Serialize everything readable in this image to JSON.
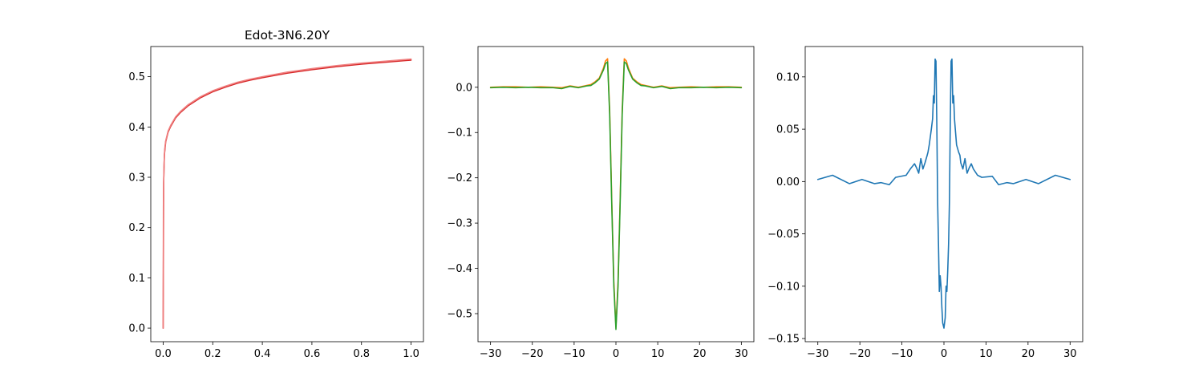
{
  "chart_data": [
    {
      "type": "line",
      "title": "Edot-3N6.20Y",
      "xlabel": "",
      "ylabel": "",
      "xlim": [
        -0.05,
        1.05
      ],
      "ylim": [
        -0.027,
        0.56
      ],
      "xticks": [
        0.0,
        0.2,
        0.4,
        0.6,
        0.8,
        1.0
      ],
      "xtick_labels": [
        "0.0",
        "0.2",
        "0.4",
        "0.6",
        "0.8",
        "1.0"
      ],
      "yticks": [
        0.0,
        0.1,
        0.2,
        0.3,
        0.4,
        0.5
      ],
      "ytick_labels": [
        "0.0",
        "0.1",
        "0.2",
        "0.3",
        "0.4",
        "0.5"
      ],
      "grid": false,
      "series": [
        {
          "color": "#d62728",
          "x": [
            0,
            0.002,
            0.005,
            0.01,
            0.02,
            0.03,
            0.05,
            0.07,
            0.1,
            0.15,
            0.2,
            0.25,
            0.3,
            0.35,
            0.4,
            0.5,
            0.6,
            0.7,
            0.8,
            0.9,
            1.0
          ],
          "y": [
            0,
            0.29,
            0.345,
            0.37,
            0.39,
            0.401,
            0.418,
            0.429,
            0.442,
            0.458,
            0.47,
            0.479,
            0.487,
            0.493,
            0.498,
            0.507,
            0.514,
            0.52,
            0.525,
            0.529,
            0.533
          ]
        },
        {
          "color": "#f08080",
          "x": [
            0,
            0.001,
            0.003,
            0.006,
            0.01,
            0.02,
            0.03,
            0.05,
            0.07,
            0.1,
            0.15,
            0.2,
            0.25,
            0.3,
            0.35,
            0.4,
            0.5,
            0.6,
            0.7,
            0.8,
            0.9,
            1.0
          ],
          "y": [
            0,
            0.24,
            0.32,
            0.355,
            0.372,
            0.392,
            0.403,
            0.42,
            0.431,
            0.444,
            0.46,
            0.472,
            0.481,
            0.489,
            0.495,
            0.5,
            0.509,
            0.516,
            0.522,
            0.527,
            0.531,
            0.535
          ]
        }
      ]
    },
    {
      "type": "line",
      "title": "",
      "xlabel": "",
      "ylabel": "",
      "xlim": [
        -33,
        33
      ],
      "ylim": [
        -0.562,
        0.09
      ],
      "xticks": [
        -30,
        -20,
        -10,
        0,
        10,
        20,
        30
      ],
      "xtick_labels": [
        "−30",
        "−20",
        "−10",
        "0",
        "10",
        "20",
        "30"
      ],
      "yticks": [
        -0.5,
        -0.4,
        -0.3,
        -0.2,
        -0.1,
        0.0
      ],
      "ytick_labels": [
        "−0.5",
        "−0.4",
        "−0.3",
        "−0.2",
        "−0.1",
        "0.0"
      ],
      "grid": false,
      "series": [
        {
          "color": "#ff7f0e",
          "x": [
            -30,
            -27,
            -24,
            -21,
            -18,
            -15,
            -13,
            -11,
            -9,
            -8,
            -7,
            -6,
            -5,
            -4,
            -3,
            -2.5,
            -2,
            -1.5,
            -1,
            -0.5,
            0,
            0.5,
            1,
            1.5,
            2,
            2.5,
            3,
            4,
            5,
            6,
            7,
            8,
            9,
            11,
            13,
            15,
            18,
            21,
            24,
            27,
            30
          ],
          "y": [
            0,
            0.001,
            0.001,
            0,
            0.001,
            0,
            -0.001,
            0.003,
            0,
            0.002,
            0.004,
            0.006,
            0.012,
            0.02,
            0.042,
            0.058,
            0.063,
            -0.05,
            -0.25,
            -0.43,
            -0.53,
            -0.43,
            -0.25,
            -0.05,
            0.063,
            0.058,
            0.042,
            0.02,
            0.012,
            0.006,
            0.004,
            0.002,
            0,
            0.003,
            -0.001,
            0,
            0.001,
            0,
            0.001,
            0.001,
            0
          ]
        },
        {
          "color": "#2ca02c",
          "x": [
            -30,
            -27,
            -24,
            -21,
            -18,
            -15,
            -13,
            -11,
            -9,
            -8,
            -7,
            -6,
            -5,
            -4,
            -3,
            -2.5,
            -2,
            -1.5,
            -1,
            -0.5,
            0,
            0.5,
            1,
            1.5,
            2,
            2.5,
            3,
            4,
            5,
            6,
            7,
            8,
            9,
            11,
            13,
            15,
            18,
            21,
            24,
            27,
            30
          ],
          "y": [
            -0.001,
            0,
            -0.001,
            0,
            -0.001,
            -0.001,
            -0.003,
            0.002,
            -0.001,
            0.001,
            0.003,
            0.004,
            0.01,
            0.018,
            0.038,
            0.052,
            0.056,
            -0.06,
            -0.26,
            -0.44,
            -0.535,
            -0.44,
            -0.26,
            -0.06,
            0.056,
            0.052,
            0.038,
            0.018,
            0.01,
            0.004,
            0.003,
            0.001,
            -0.001,
            0.002,
            -0.003,
            -0.001,
            -0.001,
            0,
            -0.001,
            0,
            -0.001
          ]
        }
      ]
    },
    {
      "type": "line",
      "title": "",
      "xlabel": "",
      "ylabel": "",
      "xlim": [
        -33,
        33
      ],
      "ylim": [
        -0.153,
        0.129
      ],
      "xticks": [
        -30,
        -20,
        -10,
        0,
        10,
        20,
        30
      ],
      "xtick_labels": [
        "−30",
        "−20",
        "−10",
        "0",
        "10",
        "20",
        "30"
      ],
      "yticks": [
        -0.15,
        -0.1,
        -0.05,
        0.0,
        0.05,
        0.1
      ],
      "ytick_labels": [
        "−0.15",
        "−0.10",
        "−0.05",
        "0.00",
        "0.05",
        "0.10"
      ],
      "grid": false,
      "series": [
        {
          "color": "#1f77b4",
          "x": [
            -30,
            -26.5,
            -22.5,
            -19.5,
            -16.5,
            -15,
            -13,
            -11.5,
            -9,
            -8,
            -7,
            -6.5,
            -6,
            -5.5,
            -5,
            -4.5,
            -4,
            -3.8,
            -3.5,
            -3,
            -2.7,
            -2.5,
            -2.3,
            -2.1,
            -1.9,
            -1.7,
            -1.5,
            -1.3,
            -1.1,
            -0.9,
            -0.7,
            -0.5,
            -0.3,
            0,
            0.3,
            0.5,
            0.7,
            0.9,
            1.1,
            1.3,
            1.5,
            1.7,
            1.9,
            2.1,
            2.3,
            2.5,
            2.7,
            3,
            3.5,
            3.8,
            4,
            4.5,
            5,
            5.5,
            6,
            6.5,
            7,
            8,
            9,
            11.5,
            13,
            15,
            16.5,
            19.5,
            22.5,
            26.5,
            30
          ],
          "y": [
            0.002,
            0.006,
            -0.002,
            0.002,
            -0.002,
            -0.001,
            -0.003,
            0.004,
            0.006,
            0.012,
            0.017,
            0.013,
            0.008,
            0.022,
            0.012,
            0.018,
            0.025,
            0.028,
            0.035,
            0.05,
            0.06,
            0.082,
            0.075,
            0.117,
            0.115,
            0.055,
            -0.02,
            -0.06,
            -0.105,
            -0.09,
            -0.1,
            -0.12,
            -0.135,
            -0.14,
            -0.13,
            -0.1,
            -0.105,
            -0.085,
            -0.06,
            -0.02,
            0.055,
            0.115,
            0.117,
            0.075,
            0.082,
            0.06,
            0.05,
            0.035,
            0.028,
            0.025,
            0.018,
            0.012,
            0.022,
            0.008,
            0.013,
            0.017,
            0.012,
            0.006,
            0.004,
            0.005,
            -0.003,
            -0.001,
            -0.002,
            0.002,
            -0.002,
            0.006,
            0.002
          ]
        }
      ]
    }
  ]
}
